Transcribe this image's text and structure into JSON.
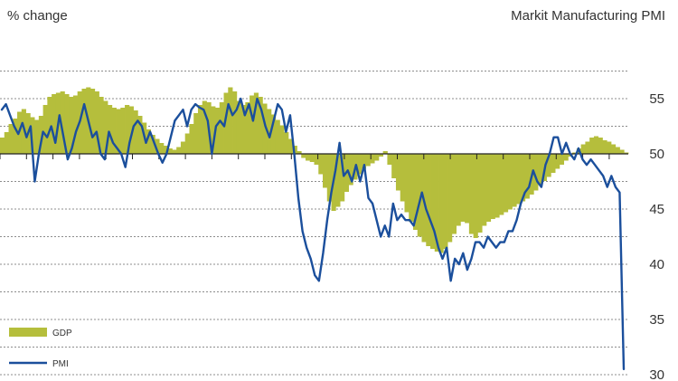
{
  "chart_data": {
    "type": "area",
    "left_axis_title": "% change",
    "right_axis_title": "Markit Manufacturing PMI",
    "right_axis": {
      "range": [
        30,
        58
      ],
      "ticks": [
        55,
        50,
        45,
        40,
        35,
        30
      ]
    },
    "grid": true,
    "legend_placement": "bottom-left",
    "colors": {
      "gdp": "#b5be3c",
      "pmi": "#1b4f9c",
      "grid": "#8c8c8c"
    },
    "series": [
      {
        "name": "GDP",
        "style": "bars",
        "values": [
          1.2,
          1.6,
          2.2,
          2.6,
          3.1,
          3.3,
          3.0,
          2.7,
          2.5,
          2.8,
          3.6,
          4.2,
          4.4,
          4.5,
          4.6,
          4.4,
          4.2,
          4.3,
          4.6,
          4.8,
          4.9,
          4.8,
          4.6,
          4.2,
          3.9,
          3.6,
          3.4,
          3.3,
          3.4,
          3.6,
          3.5,
          3.2,
          2.8,
          2.3,
          1.8,
          1.4,
          1.1,
          0.8,
          0.6,
          0.4,
          0.3,
          0.5,
          0.9,
          1.5,
          2.2,
          3.0,
          3.6,
          3.9,
          3.8,
          3.5,
          3.4,
          3.8,
          4.5,
          4.9,
          4.6,
          3.9,
          3.6,
          3.8,
          4.3,
          4.5,
          4.2,
          3.7,
          3.3,
          2.9,
          2.5,
          2.1,
          1.6,
          1.1,
          0.6,
          0.2,
          -0.3,
          -0.5,
          -0.6,
          -0.8,
          -1.5,
          -2.5,
          -3.5,
          -4.2,
          -3.9,
          -3.5,
          -2.8,
          -2.3,
          -1.9,
          -1.5,
          -1.1,
          -0.9,
          -0.7,
          -0.5,
          -0.2,
          0.2,
          -0.8,
          -1.8,
          -2.7,
          -3.5,
          -4.3,
          -5.0,
          -5.6,
          -6.1,
          -6.5,
          -6.8,
          -7.0,
          -7.2,
          -7.3,
          -7.0,
          -6.5,
          -5.9,
          -5.3,
          -5.0,
          -5.1,
          -5.9,
          -6.2,
          -5.8,
          -5.3,
          -5.0,
          -4.8,
          -4.7,
          -4.5,
          -4.3,
          -4.1,
          -3.9,
          -3.7,
          -3.5,
          -3.3,
          -3.0,
          -2.7,
          -2.3,
          -2.0,
          -1.7,
          -1.4,
          -1.1,
          -0.8,
          -0.5,
          -0.2,
          0.1,
          0.4,
          0.7,
          0.9,
          1.2,
          1.3,
          1.2,
          1.0,
          0.9,
          0.7,
          0.5,
          0.3,
          0.1
        ]
      },
      {
        "name": "PMI",
        "style": "line",
        "values": [
          54.0,
          54.5,
          53.5,
          52.5,
          51.8,
          52.8,
          51.5,
          52.5,
          47.5,
          50.0,
          52.0,
          51.5,
          52.5,
          51.0,
          53.5,
          51.5,
          49.5,
          50.5,
          52.0,
          53.0,
          54.5,
          53.0,
          51.5,
          52.0,
          50.0,
          49.5,
          52.0,
          51.0,
          50.5,
          50.0,
          48.8,
          51.0,
          52.5,
          53.0,
          52.5,
          51.0,
          52.0,
          51.0,
          50.0,
          49.2,
          50.0,
          51.5,
          53.0,
          53.5,
          54.0,
          52.5,
          54.0,
          54.5,
          54.2,
          54.0,
          53.0,
          50.0,
          52.5,
          53.0,
          52.5,
          54.5,
          53.5,
          54.0,
          55.0,
          53.5,
          54.5,
          53.0,
          55.0,
          54.0,
          52.5,
          51.5,
          53.0,
          54.5,
          54.0,
          52.0,
          53.5,
          50.0,
          46.0,
          43.0,
          41.5,
          40.5,
          39.0,
          38.5,
          41.0,
          44.0,
          46.5,
          48.5,
          51.0,
          48.0,
          48.5,
          47.5,
          49.0,
          47.5,
          49.0,
          46.0,
          45.5,
          44.0,
          42.5,
          43.5,
          42.5,
          45.5,
          44.0,
          44.5,
          44.0,
          44.0,
          43.5,
          45.0,
          46.5,
          45.0,
          44.0,
          43.0,
          41.5,
          40.5,
          41.5,
          38.5,
          40.5,
          40.0,
          41.0,
          39.5,
          40.5,
          42.0,
          42.0,
          41.5,
          42.5,
          42.0,
          41.5,
          42.0,
          42.0,
          43.0,
          43.0,
          44.0,
          45.5,
          46.5,
          47.0,
          48.5,
          47.5,
          47.0,
          49.0,
          50.0,
          51.5,
          51.5,
          50.0,
          51.0,
          50.0,
          49.5,
          50.5,
          49.5,
          49.0,
          49.5,
          49.0,
          48.5,
          48.0,
          47.0,
          48.0,
          47.0,
          46.5,
          30.5
        ]
      }
    ]
  }
}
